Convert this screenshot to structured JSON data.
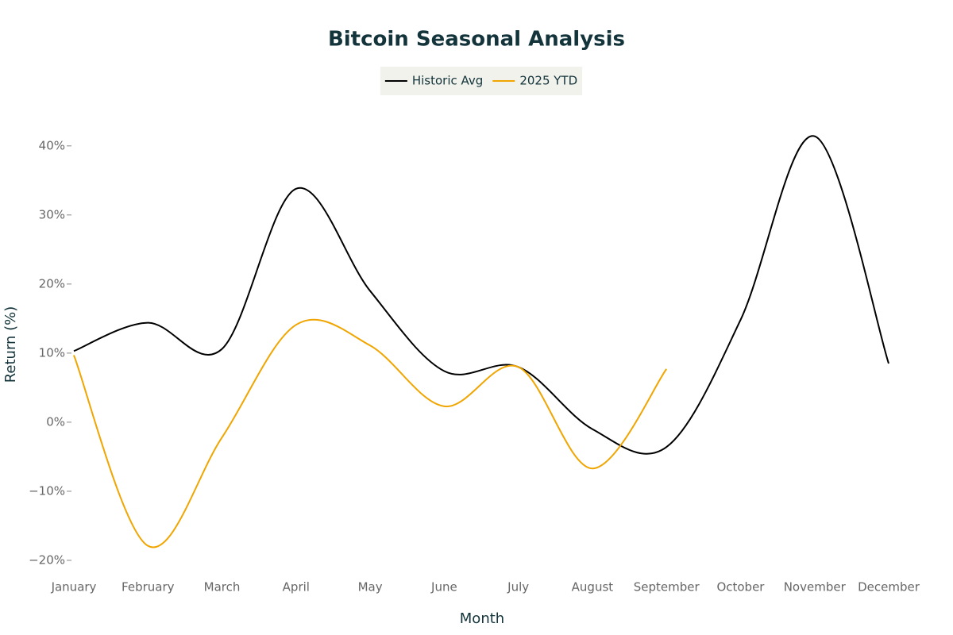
{
  "chart_data": {
    "type": "line",
    "title": "Bitcoin Seasonal Analysis",
    "x_label": "Month",
    "y_label": "Return (%)",
    "categories": [
      "January",
      "February",
      "March",
      "April",
      "May",
      "June",
      "July",
      "August",
      "September",
      "October",
      "November",
      "December"
    ],
    "series": [
      {
        "name": "Historic Avg",
        "color": "#000000",
        "values": [
          10.3,
          14.4,
          10.6,
          33.8,
          19.0,
          7.4,
          8.0,
          -1.0,
          -3.6,
          14.8,
          41.4,
          8.5
        ]
      },
      {
        "name": "2025 YTD",
        "color": "#f0a500",
        "values": [
          9.7,
          -17.9,
          -2.2,
          14.1,
          11.1,
          2.3,
          8.0,
          -6.7,
          7.7,
          null,
          null,
          null
        ]
      }
    ],
    "ylim": [
      -21.5,
      44
    ],
    "yticks": [
      {
        "value": -20,
        "label": "−20%"
      },
      {
        "value": -10,
        "label": "−10%"
      },
      {
        "value": 0,
        "label": "0%"
      },
      {
        "value": 10,
        "label": "10%"
      },
      {
        "value": 20,
        "label": "20%"
      },
      {
        "value": 30,
        "label": "30%"
      },
      {
        "value": 40,
        "label": "40%"
      }
    ],
    "grid": false,
    "legend": "top"
  }
}
